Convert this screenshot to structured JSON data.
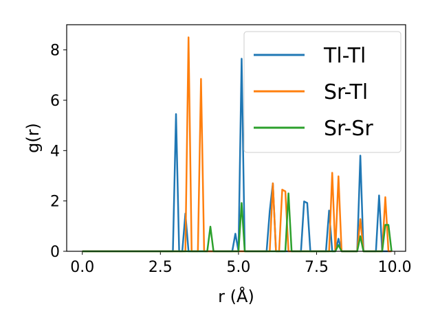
{
  "chart_data": {
    "type": "line",
    "title": "",
    "xlabel": "r (Å)",
    "ylabel": "g(r)",
    "xlim": [
      -0.5,
      10.35
    ],
    "ylim": [
      0,
      9.0
    ],
    "xticks": [
      0.0,
      2.5,
      5.0,
      7.5,
      10.0
    ],
    "xtick_labels": [
      "0.0",
      "2.5",
      "5.0",
      "7.5",
      "10.0"
    ],
    "yticks": [
      0,
      2,
      4,
      6,
      8
    ],
    "ytick_labels": [
      "0",
      "2",
      "4",
      "6",
      "8"
    ],
    "grid": false,
    "legend_position": "top-right",
    "series": [
      {
        "name": "Tl-Tl",
        "color": "#1f77b4",
        "x": [
          0,
          2.9,
          3.0,
          3.1,
          3.2,
          3.3,
          3.4,
          3.5,
          4.8,
          4.9,
          5.0,
          5.1,
          5.2,
          5.9,
          6.0,
          6.1,
          6.2,
          7.0,
          7.1,
          7.2,
          7.3,
          7.8,
          7.9,
          8.0,
          8.1,
          8.2,
          8.3,
          8.8,
          8.9,
          9.0,
          9.4,
          9.5,
          9.6,
          9.7,
          9.8,
          9.9
        ],
        "y": [
          0,
          0,
          5.45,
          0,
          0,
          1.5,
          0,
          0,
          0,
          0.7,
          0,
          7.65,
          0,
          0,
          1.6,
          2.7,
          0,
          0,
          1.98,
          1.92,
          0,
          0,
          1.62,
          0,
          0,
          0.5,
          0,
          0,
          3.8,
          0,
          0,
          2.22,
          0,
          0,
          0,
          0
        ]
      },
      {
        "name": "Sr-Tl",
        "color": "#ff7f0e",
        "x": [
          0,
          3.3,
          3.4,
          3.5,
          3.7,
          3.8,
          3.9,
          5.9,
          6.0,
          6.1,
          6.2,
          6.3,
          6.4,
          6.5,
          6.6,
          7.8,
          7.9,
          8.0,
          8.1,
          8.2,
          8.3,
          8.8,
          8.9,
          9.0,
          9.6,
          9.7,
          9.8,
          9.9
        ],
        "y": [
          0,
          0,
          8.5,
          0,
          0,
          6.85,
          0,
          0,
          0,
          2.7,
          0,
          0,
          2.45,
          2.38,
          0,
          0,
          0,
          3.12,
          0,
          2.98,
          0,
          0,
          1.28,
          0,
          0,
          2.15,
          0,
          0
        ]
      },
      {
        "name": "Sr-Sr",
        "color": "#2ca02c",
        "x": [
          0,
          4.0,
          4.1,
          4.2,
          5.0,
          5.1,
          5.2,
          6.5,
          6.6,
          6.7,
          8.1,
          8.2,
          8.3,
          8.8,
          8.9,
          9.0,
          9.6,
          9.7,
          9.8,
          9.9
        ],
        "y": [
          0,
          0,
          0.98,
          0,
          0,
          1.92,
          0,
          0,
          2.3,
          0,
          0,
          0.25,
          0,
          0,
          0.6,
          0,
          0,
          1.05,
          1.05,
          0
        ]
      }
    ]
  }
}
